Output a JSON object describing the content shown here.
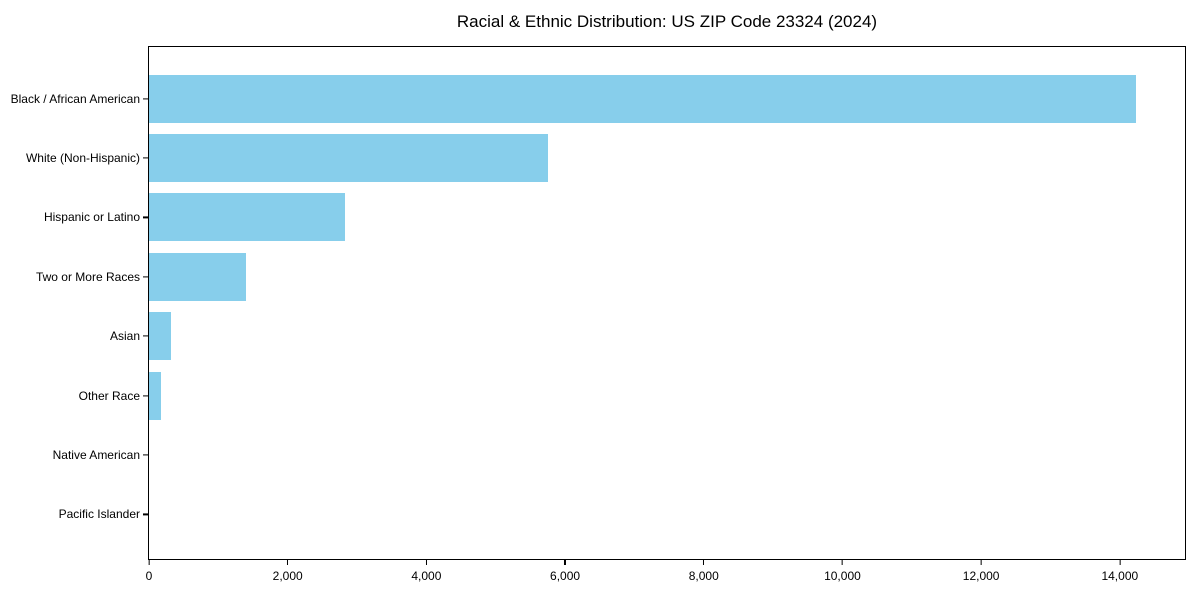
{
  "page": {
    "background_color": "#FFFFFF"
  },
  "chart_data": {
    "type": "bar",
    "orientation": "horizontal",
    "title": "Racial & Ethnic Distribution: US ZIP Code 23324 (2024)",
    "categories": [
      "Black / African American",
      "White (Non-Hispanic)",
      "Hispanic or Latino",
      "Two or More Races",
      "Asian",
      "Other Race",
      "Native American",
      "Pacific Islander"
    ],
    "values": [
      14230,
      5750,
      2820,
      1395,
      315,
      175,
      0,
      0
    ],
    "xlabel": "",
    "ylabel": "",
    "xlim": [
      0,
      14940
    ],
    "xticks": {
      "values": [
        0,
        2000,
        4000,
        6000,
        8000,
        10000,
        12000,
        14000
      ],
      "labels": [
        "0",
        "2,000",
        "4,000",
        "6,000",
        "8,000",
        "10,000",
        "12,000",
        "14,000"
      ]
    },
    "grid": false,
    "legend": null,
    "bar_color": "#87CEEB",
    "axis_color": "#000000"
  }
}
